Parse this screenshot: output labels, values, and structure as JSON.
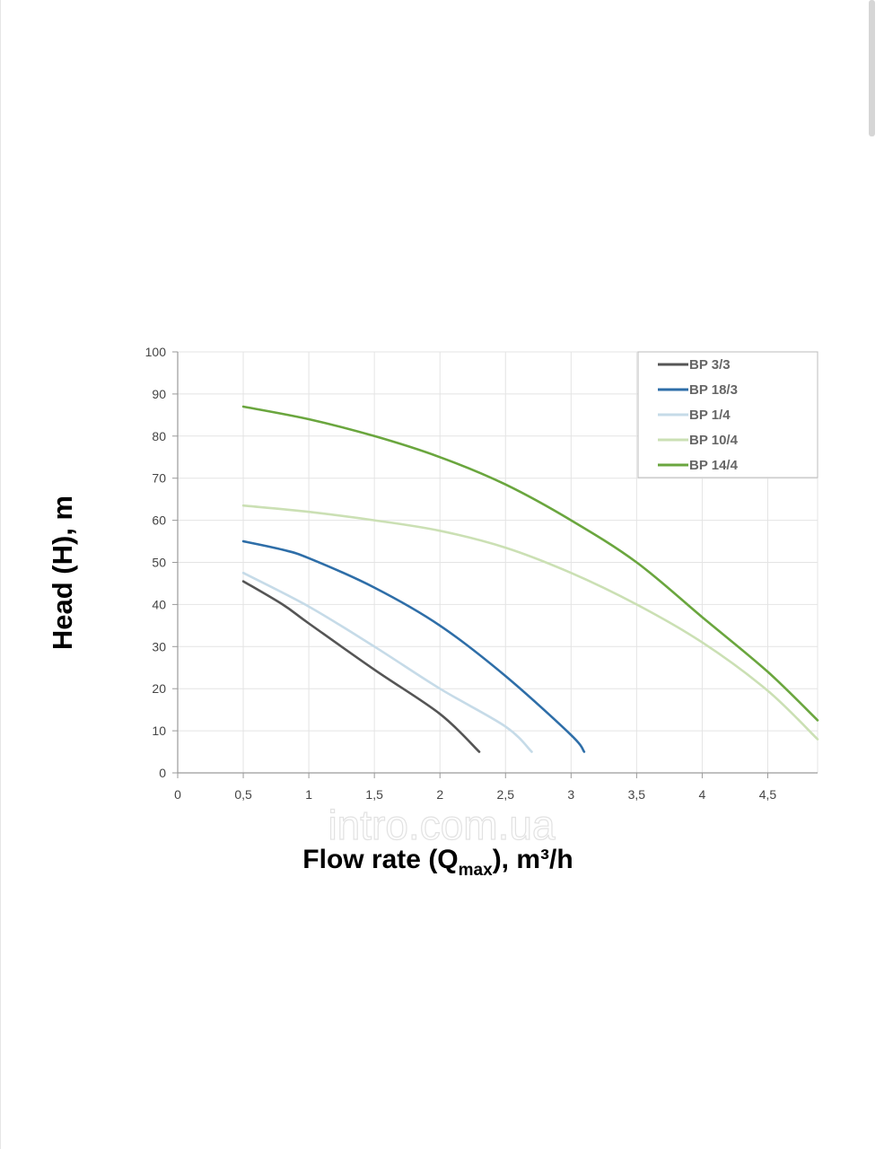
{
  "watermark": "intro.com.ua",
  "chart_data": {
    "type": "line",
    "xlabel": {
      "prefix": "Flow rate (Q",
      "subscript": "max",
      "suffix": "), m³/h"
    },
    "ylabel": "Head (H), m",
    "xlim": [
      0,
      4.88
    ],
    "ylim": [
      0,
      100
    ],
    "x_ticks": [
      {
        "value": 0,
        "label": "0"
      },
      {
        "value": 0.5,
        "label": "0,5"
      },
      {
        "value": 1,
        "label": "1"
      },
      {
        "value": 1.5,
        "label": "1,5"
      },
      {
        "value": 2,
        "label": "2"
      },
      {
        "value": 2.5,
        "label": "2,5"
      },
      {
        "value": 3,
        "label": "3"
      },
      {
        "value": 3.5,
        "label": "3,5"
      },
      {
        "value": 4,
        "label": "4"
      },
      {
        "value": 4.5,
        "label": "4,5"
      }
    ],
    "y_ticks": [
      {
        "value": 0,
        "label": "0"
      },
      {
        "value": 10,
        "label": "10"
      },
      {
        "value": 20,
        "label": "20"
      },
      {
        "value": 30,
        "label": "30"
      },
      {
        "value": 40,
        "label": "40"
      },
      {
        "value": 50,
        "label": "50"
      },
      {
        "value": 60,
        "label": "60"
      },
      {
        "value": 70,
        "label": "70"
      },
      {
        "value": 80,
        "label": "80"
      },
      {
        "value": 90,
        "label": "90"
      },
      {
        "value": 100,
        "label": "100"
      }
    ],
    "grid": true,
    "legend_position": "top-right",
    "series": [
      {
        "name": "BP 3/3",
        "color": "#555555",
        "points": [
          [
            0.5,
            45.5
          ],
          [
            0.8,
            40
          ],
          [
            1.0,
            35.5
          ],
          [
            1.5,
            24.5
          ],
          [
            2.0,
            14
          ],
          [
            2.3,
            5
          ]
        ]
      },
      {
        "name": "BP 18/3",
        "color": "#2e6ea8",
        "points": [
          [
            0.5,
            55
          ],
          [
            0.8,
            53
          ],
          [
            1.0,
            51
          ],
          [
            1.5,
            44
          ],
          [
            2.0,
            35
          ],
          [
            2.5,
            23
          ],
          [
            3.0,
            9
          ],
          [
            3.1,
            5
          ]
        ]
      },
      {
        "name": "BP 1/4",
        "color": "#c6dbe8",
        "points": [
          [
            0.5,
            47.5
          ],
          [
            1.0,
            39.5
          ],
          [
            1.5,
            30
          ],
          [
            2.0,
            20
          ],
          [
            2.5,
            11
          ],
          [
            2.7,
            5
          ]
        ]
      },
      {
        "name": "BP 10/4",
        "color": "#cbe0b4",
        "points": [
          [
            0.5,
            63.5
          ],
          [
            1.0,
            62
          ],
          [
            1.5,
            60
          ],
          [
            2.0,
            57.5
          ],
          [
            2.5,
            53.5
          ],
          [
            3.0,
            47.5
          ],
          [
            3.5,
            40
          ],
          [
            4.0,
            31
          ],
          [
            4.5,
            19.5
          ],
          [
            4.88,
            8
          ]
        ]
      },
      {
        "name": "BP 14/4",
        "color": "#6aa63e",
        "points": [
          [
            0.5,
            87
          ],
          [
            1.0,
            84
          ],
          [
            1.5,
            80
          ],
          [
            2.0,
            75
          ],
          [
            2.5,
            68.5
          ],
          [
            3.0,
            60
          ],
          [
            3.5,
            50
          ],
          [
            4.0,
            37
          ],
          [
            4.5,
            24
          ],
          [
            4.88,
            12.5
          ]
        ]
      }
    ]
  }
}
